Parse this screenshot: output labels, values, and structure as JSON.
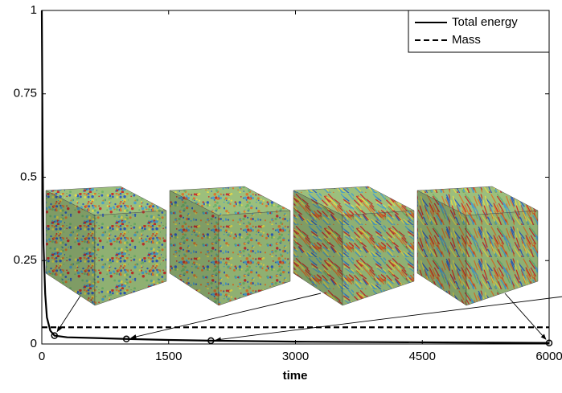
{
  "chart_data": {
    "type": "line",
    "x_label": "time",
    "xlim": [
      0,
      6000
    ],
    "xticks": [
      0,
      1500,
      3000,
      4500,
      6000
    ],
    "ylim": [
      0,
      1
    ],
    "yticks": [
      0,
      0.25,
      0.5,
      0.75,
      1
    ],
    "legend": "top-right",
    "series": [
      {
        "name": "Total energy",
        "color": "#000000",
        "dash": "solid",
        "x": [
          0,
          10,
          20,
          40,
          60,
          100,
          150,
          300,
          600,
          1000,
          1500,
          2000,
          3000,
          4500,
          6000
        ],
        "values": [
          1,
          0.57,
          0.3,
          0.15,
          0.08,
          0.04,
          0.025,
          0.02,
          0.018,
          0.015,
          0.012,
          0.01,
          0.007,
          0.005,
          0.003
        ]
      },
      {
        "name": "Mass",
        "color": "#000000",
        "dash": "dashed",
        "x": [
          0,
          6000
        ],
        "values": [
          0.05,
          0.05
        ]
      }
    ],
    "snapshots": {
      "x": [
        150,
        1000,
        2000,
        6000
      ],
      "values": [
        0.025,
        0.015,
        0.01,
        0.003
      ]
    }
  }
}
